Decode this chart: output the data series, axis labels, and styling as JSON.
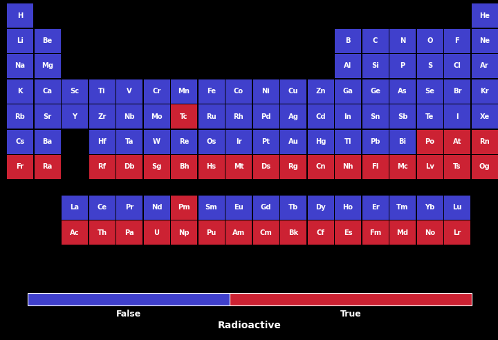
{
  "blue": "#4040CC",
  "red": "#CC2233",
  "black": "#000000",
  "text_color": "#FFFFFF",
  "title": "Radioactive",
  "legend_false": "False",
  "legend_true": "True",
  "fig_width": 7.2,
  "fig_height": 4.92,
  "dpi": 100,
  "elements": [
    {
      "symbol": "H",
      "row": 0,
      "col": 0,
      "radioactive": false
    },
    {
      "symbol": "He",
      "row": 0,
      "col": 17,
      "radioactive": false
    },
    {
      "symbol": "Li",
      "row": 1,
      "col": 0,
      "radioactive": false
    },
    {
      "symbol": "Be",
      "row": 1,
      "col": 1,
      "radioactive": false
    },
    {
      "symbol": "B",
      "row": 1,
      "col": 12,
      "radioactive": false
    },
    {
      "symbol": "C",
      "row": 1,
      "col": 13,
      "radioactive": false
    },
    {
      "symbol": "N",
      "row": 1,
      "col": 14,
      "radioactive": false
    },
    {
      "symbol": "O",
      "row": 1,
      "col": 15,
      "radioactive": false
    },
    {
      "symbol": "F",
      "row": 1,
      "col": 16,
      "radioactive": false
    },
    {
      "symbol": "Ne",
      "row": 1,
      "col": 17,
      "radioactive": false
    },
    {
      "symbol": "Na",
      "row": 2,
      "col": 0,
      "radioactive": false
    },
    {
      "symbol": "Mg",
      "row": 2,
      "col": 1,
      "radioactive": false
    },
    {
      "symbol": "Al",
      "row": 2,
      "col": 12,
      "radioactive": false
    },
    {
      "symbol": "Si",
      "row": 2,
      "col": 13,
      "radioactive": false
    },
    {
      "symbol": "P",
      "row": 2,
      "col": 14,
      "radioactive": false
    },
    {
      "symbol": "S",
      "row": 2,
      "col": 15,
      "radioactive": false
    },
    {
      "symbol": "Cl",
      "row": 2,
      "col": 16,
      "radioactive": false
    },
    {
      "symbol": "Ar",
      "row": 2,
      "col": 17,
      "radioactive": false
    },
    {
      "symbol": "K",
      "row": 3,
      "col": 0,
      "radioactive": false
    },
    {
      "symbol": "Ca",
      "row": 3,
      "col": 1,
      "radioactive": false
    },
    {
      "symbol": "Sc",
      "row": 3,
      "col": 2,
      "radioactive": false
    },
    {
      "symbol": "Ti",
      "row": 3,
      "col": 3,
      "radioactive": false
    },
    {
      "symbol": "V",
      "row": 3,
      "col": 4,
      "radioactive": false
    },
    {
      "symbol": "Cr",
      "row": 3,
      "col": 5,
      "radioactive": false
    },
    {
      "symbol": "Mn",
      "row": 3,
      "col": 6,
      "radioactive": false
    },
    {
      "symbol": "Fe",
      "row": 3,
      "col": 7,
      "radioactive": false
    },
    {
      "symbol": "Co",
      "row": 3,
      "col": 8,
      "radioactive": false
    },
    {
      "symbol": "Ni",
      "row": 3,
      "col": 9,
      "radioactive": false
    },
    {
      "symbol": "Cu",
      "row": 3,
      "col": 10,
      "radioactive": false
    },
    {
      "symbol": "Zn",
      "row": 3,
      "col": 11,
      "radioactive": false
    },
    {
      "symbol": "Ga",
      "row": 3,
      "col": 12,
      "radioactive": false
    },
    {
      "symbol": "Ge",
      "row": 3,
      "col": 13,
      "radioactive": false
    },
    {
      "symbol": "As",
      "row": 3,
      "col": 14,
      "radioactive": false
    },
    {
      "symbol": "Se",
      "row": 3,
      "col": 15,
      "radioactive": false
    },
    {
      "symbol": "Br",
      "row": 3,
      "col": 16,
      "radioactive": false
    },
    {
      "symbol": "Kr",
      "row": 3,
      "col": 17,
      "radioactive": false
    },
    {
      "symbol": "Rb",
      "row": 4,
      "col": 0,
      "radioactive": false
    },
    {
      "symbol": "Sr",
      "row": 4,
      "col": 1,
      "radioactive": false
    },
    {
      "symbol": "Y",
      "row": 4,
      "col": 2,
      "radioactive": false
    },
    {
      "symbol": "Zr",
      "row": 4,
      "col": 3,
      "radioactive": false
    },
    {
      "symbol": "Nb",
      "row": 4,
      "col": 4,
      "radioactive": false
    },
    {
      "symbol": "Mo",
      "row": 4,
      "col": 5,
      "radioactive": false
    },
    {
      "symbol": "Tc",
      "row": 4,
      "col": 6,
      "radioactive": true
    },
    {
      "symbol": "Ru",
      "row": 4,
      "col": 7,
      "radioactive": false
    },
    {
      "symbol": "Rh",
      "row": 4,
      "col": 8,
      "radioactive": false
    },
    {
      "symbol": "Pd",
      "row": 4,
      "col": 9,
      "radioactive": false
    },
    {
      "symbol": "Ag",
      "row": 4,
      "col": 10,
      "radioactive": false
    },
    {
      "symbol": "Cd",
      "row": 4,
      "col": 11,
      "radioactive": false
    },
    {
      "symbol": "In",
      "row": 4,
      "col": 12,
      "radioactive": false
    },
    {
      "symbol": "Sn",
      "row": 4,
      "col": 13,
      "radioactive": false
    },
    {
      "symbol": "Sb",
      "row": 4,
      "col": 14,
      "radioactive": false
    },
    {
      "symbol": "Te",
      "row": 4,
      "col": 15,
      "radioactive": false
    },
    {
      "symbol": "I",
      "row": 4,
      "col": 16,
      "radioactive": false
    },
    {
      "symbol": "Xe",
      "row": 4,
      "col": 17,
      "radioactive": false
    },
    {
      "symbol": "Cs",
      "row": 5,
      "col": 0,
      "radioactive": false
    },
    {
      "symbol": "Ba",
      "row": 5,
      "col": 1,
      "radioactive": false
    },
    {
      "symbol": "Hf",
      "row": 5,
      "col": 3,
      "radioactive": false
    },
    {
      "symbol": "Ta",
      "row": 5,
      "col": 4,
      "radioactive": false
    },
    {
      "symbol": "W",
      "row": 5,
      "col": 5,
      "radioactive": false
    },
    {
      "symbol": "Re",
      "row": 5,
      "col": 6,
      "radioactive": false
    },
    {
      "symbol": "Os",
      "row": 5,
      "col": 7,
      "radioactive": false
    },
    {
      "symbol": "Ir",
      "row": 5,
      "col": 8,
      "radioactive": false
    },
    {
      "symbol": "Pt",
      "row": 5,
      "col": 9,
      "radioactive": false
    },
    {
      "symbol": "Au",
      "row": 5,
      "col": 10,
      "radioactive": false
    },
    {
      "symbol": "Hg",
      "row": 5,
      "col": 11,
      "radioactive": false
    },
    {
      "symbol": "Tl",
      "row": 5,
      "col": 12,
      "radioactive": false
    },
    {
      "symbol": "Pb",
      "row": 5,
      "col": 13,
      "radioactive": false
    },
    {
      "symbol": "Bi",
      "row": 5,
      "col": 14,
      "radioactive": false
    },
    {
      "symbol": "Po",
      "row": 5,
      "col": 15,
      "radioactive": true
    },
    {
      "symbol": "At",
      "row": 5,
      "col": 16,
      "radioactive": true
    },
    {
      "symbol": "Rn",
      "row": 5,
      "col": 17,
      "radioactive": true
    },
    {
      "symbol": "Fr",
      "row": 6,
      "col": 0,
      "radioactive": true
    },
    {
      "symbol": "Ra",
      "row": 6,
      "col": 1,
      "radioactive": true
    },
    {
      "symbol": "Rf",
      "row": 6,
      "col": 3,
      "radioactive": true
    },
    {
      "symbol": "Db",
      "row": 6,
      "col": 4,
      "radioactive": true
    },
    {
      "symbol": "Sg",
      "row": 6,
      "col": 5,
      "radioactive": true
    },
    {
      "symbol": "Bh",
      "row": 6,
      "col": 6,
      "radioactive": true
    },
    {
      "symbol": "Hs",
      "row": 6,
      "col": 7,
      "radioactive": true
    },
    {
      "symbol": "Mt",
      "row": 6,
      "col": 8,
      "radioactive": true
    },
    {
      "symbol": "Ds",
      "row": 6,
      "col": 9,
      "radioactive": true
    },
    {
      "symbol": "Rg",
      "row": 6,
      "col": 10,
      "radioactive": true
    },
    {
      "symbol": "Cn",
      "row": 6,
      "col": 11,
      "radioactive": true
    },
    {
      "symbol": "Nh",
      "row": 6,
      "col": 12,
      "radioactive": true
    },
    {
      "symbol": "Fl",
      "row": 6,
      "col": 13,
      "radioactive": true
    },
    {
      "symbol": "Mc",
      "row": 6,
      "col": 14,
      "radioactive": true
    },
    {
      "symbol": "Lv",
      "row": 6,
      "col": 15,
      "radioactive": true
    },
    {
      "symbol": "Ts",
      "row": 6,
      "col": 16,
      "radioactive": true
    },
    {
      "symbol": "Og",
      "row": 6,
      "col": 17,
      "radioactive": true
    },
    {
      "symbol": "La",
      "row": 8,
      "col": 2,
      "radioactive": false
    },
    {
      "symbol": "Ce",
      "row": 8,
      "col": 3,
      "radioactive": false
    },
    {
      "symbol": "Pr",
      "row": 8,
      "col": 4,
      "radioactive": false
    },
    {
      "symbol": "Nd",
      "row": 8,
      "col": 5,
      "radioactive": false
    },
    {
      "symbol": "Pm",
      "row": 8,
      "col": 6,
      "radioactive": true
    },
    {
      "symbol": "Sm",
      "row": 8,
      "col": 7,
      "radioactive": false
    },
    {
      "symbol": "Eu",
      "row": 8,
      "col": 8,
      "radioactive": false
    },
    {
      "symbol": "Gd",
      "row": 8,
      "col": 9,
      "radioactive": false
    },
    {
      "symbol": "Tb",
      "row": 8,
      "col": 10,
      "radioactive": false
    },
    {
      "symbol": "Dy",
      "row": 8,
      "col": 11,
      "radioactive": false
    },
    {
      "symbol": "Ho",
      "row": 8,
      "col": 12,
      "radioactive": false
    },
    {
      "symbol": "Er",
      "row": 8,
      "col": 13,
      "radioactive": false
    },
    {
      "symbol": "Tm",
      "row": 8,
      "col": 14,
      "radioactive": false
    },
    {
      "symbol": "Yb",
      "row": 8,
      "col": 15,
      "radioactive": false
    },
    {
      "symbol": "Lu",
      "row": 8,
      "col": 16,
      "radioactive": false
    },
    {
      "symbol": "Ac",
      "row": 9,
      "col": 2,
      "radioactive": true
    },
    {
      "symbol": "Th",
      "row": 9,
      "col": 3,
      "radioactive": true
    },
    {
      "symbol": "Pa",
      "row": 9,
      "col": 4,
      "radioactive": true
    },
    {
      "symbol": "U",
      "row": 9,
      "col": 5,
      "radioactive": true
    },
    {
      "symbol": "Np",
      "row": 9,
      "col": 6,
      "radioactive": true
    },
    {
      "symbol": "Pu",
      "row": 9,
      "col": 7,
      "radioactive": true
    },
    {
      "symbol": "Am",
      "row": 9,
      "col": 8,
      "radioactive": true
    },
    {
      "symbol": "Cm",
      "row": 9,
      "col": 9,
      "radioactive": true
    },
    {
      "symbol": "Bk",
      "row": 9,
      "col": 10,
      "radioactive": true
    },
    {
      "symbol": "Cf",
      "row": 9,
      "col": 11,
      "radioactive": true
    },
    {
      "symbol": "Es",
      "row": 9,
      "col": 12,
      "radioactive": true
    },
    {
      "symbol": "Fm",
      "row": 9,
      "col": 13,
      "radioactive": true
    },
    {
      "symbol": "Md",
      "row": 9,
      "col": 14,
      "radioactive": true
    },
    {
      "symbol": "No",
      "row": 9,
      "col": 15,
      "radioactive": true
    },
    {
      "symbol": "Lr",
      "row": 9,
      "col": 16,
      "radioactive": true
    }
  ]
}
